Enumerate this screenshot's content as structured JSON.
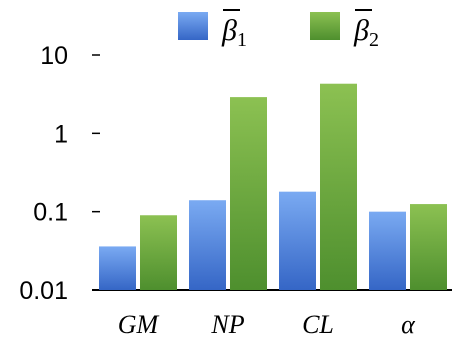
{
  "chart_data": {
    "type": "bar",
    "scale": "log",
    "categories": [
      "GM",
      "NP",
      "CL",
      "α"
    ],
    "series": [
      {
        "name": "β̄1",
        "symbol": "β",
        "subscript": "1",
        "color_top": "#7aaaf2",
        "color_bottom": "#3566c6",
        "values": [
          0.036,
          0.14,
          0.18,
          0.1
        ]
      },
      {
        "name": "β̄2",
        "symbol": "β",
        "subscript": "2",
        "color_top": "#8cc152",
        "color_bottom": "#4e8f2e",
        "values": [
          0.09,
          2.9,
          4.3,
          0.125
        ]
      }
    ],
    "ylim": [
      0.01,
      10
    ],
    "yticks": [
      0.01,
      0.1,
      1,
      10
    ],
    "ytick_labels": [
      "0.01",
      "0.1",
      "1",
      "10"
    ],
    "grid": false,
    "legend_position": "top"
  }
}
